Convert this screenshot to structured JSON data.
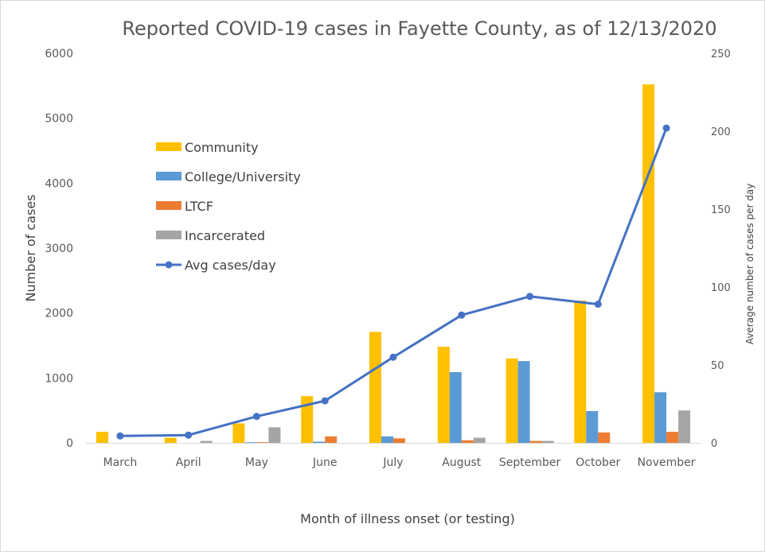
{
  "chart_data": {
    "type": "bar",
    "title": "Reported COVID-19 cases in Fayette County, as of 12/13/2020",
    "xlabel": "Month of illness onset (or testing)",
    "ylabel": "Number of cases",
    "y2label": "Average number of cases per day",
    "ylim": [
      0,
      6000
    ],
    "y2lim": [
      0,
      250
    ],
    "yticks": [
      0,
      1000,
      2000,
      3000,
      4000,
      5000,
      6000
    ],
    "y2ticks": [
      0,
      50,
      100,
      150,
      200,
      250
    ],
    "grid": false,
    "legend_position": "left",
    "categories": [
      "March",
      "April",
      "May",
      "June",
      "July",
      "August",
      "September",
      "October",
      "November"
    ],
    "series": [
      {
        "name": "Community",
        "kind": "bar",
        "axis": "left",
        "color": "#FFC000",
        "values": [
          170,
          80,
          300,
          720,
          1710,
          1480,
          1300,
          2190,
          5520
        ]
      },
      {
        "name": "College/University",
        "kind": "bar",
        "axis": "left",
        "color": "#5B9BD5",
        "values": [
          0,
          0,
          10,
          20,
          100,
          1090,
          1260,
          490,
          780
        ]
      },
      {
        "name": "LTCF",
        "kind": "bar",
        "axis": "left",
        "color": "#ED7D31",
        "values": [
          0,
          0,
          10,
          100,
          70,
          40,
          30,
          160,
          170
        ]
      },
      {
        "name": "Incarcerated",
        "kind": "bar",
        "axis": "left",
        "color": "#A5A5A5",
        "values": [
          0,
          30,
          240,
          0,
          0,
          80,
          30,
          0,
          500
        ]
      },
      {
        "name": "Avg cases/day",
        "kind": "line",
        "axis": "right",
        "color": "#4472C4",
        "values": [
          4.5,
          5,
          17,
          27,
          55,
          82,
          94,
          89,
          202
        ]
      }
    ]
  }
}
